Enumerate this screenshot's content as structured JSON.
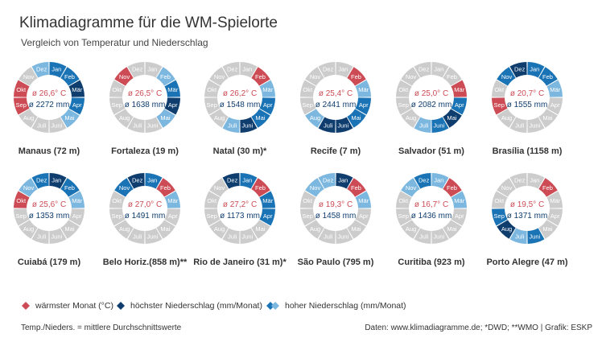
{
  "title": "Klimadiagramme für die WM-Spielorte",
  "subtitle": "Vergleich von Temperatur und Niederschlag",
  "colors": {
    "gray": "#cccccc",
    "red": "#cc4b55",
    "dark": "#0e3d6e",
    "mid": "#1a73b4",
    "light": "#7cb7df"
  },
  "month_labels": [
    "Jan",
    "Feb",
    "Mär",
    "Apr",
    "Mai",
    "Juni",
    "Juli",
    "Aug",
    "Sep",
    "Okt",
    "Nov",
    "Dez"
  ],
  "chart_data": [
    {
      "type": "donut",
      "city": "Manaus (72 m)",
      "temp": "ø 26,6° C",
      "precip": "ø 2272 mm",
      "months": {
        "Jan": "mid",
        "Feb": "mid",
        "Mär": "dark",
        "Apr": "mid",
        "Mai": "light",
        "Juni": "gray",
        "Juli": "gray",
        "Aug": "gray",
        "Sep": "red",
        "Okt": "red",
        "Nov": "gray",
        "Dez": "light"
      }
    },
    {
      "type": "donut",
      "city": "Fortaleza (19 m)",
      "temp": "ø 26,5° C",
      "precip": "ø 1638 mm",
      "months": {
        "Jan": "gray",
        "Feb": "light",
        "Mär": "mid",
        "Apr": "dark",
        "Mai": "light",
        "Juni": "gray",
        "Juli": "gray",
        "Aug": "gray",
        "Sep": "gray",
        "Okt": "gray",
        "Nov": "red",
        "Dez": "gray"
      }
    },
    {
      "type": "donut",
      "city": "Natal (30 m)*",
      "temp": "ø 26,2° C",
      "precip": "ø 1548 mm",
      "months": {
        "Jan": "gray",
        "Feb": "red",
        "Mär": "light",
        "Apr": "mid",
        "Mai": "mid",
        "Juni": "dark",
        "Juli": "light",
        "Aug": "gray",
        "Sep": "gray",
        "Okt": "gray",
        "Nov": "gray",
        "Dez": "gray"
      }
    },
    {
      "type": "donut",
      "city": "Recife (7 m)",
      "temp": "ø 25,4° C",
      "precip": "ø 2441 mm",
      "months": {
        "Jan": "gray",
        "Feb": "red",
        "Mär": "light",
        "Apr": "mid",
        "Mai": "mid",
        "Juni": "dark",
        "Juli": "dark",
        "Aug": "light",
        "Sep": "gray",
        "Okt": "gray",
        "Nov": "gray",
        "Dez": "gray"
      }
    },
    {
      "type": "donut",
      "city": "Salvador (51 m)",
      "temp": "ø 25,0° C",
      "precip": "ø 2082 mm",
      "months": {
        "Jan": "gray",
        "Feb": "gray",
        "Mär": "red",
        "Apr": "mid",
        "Mai": "dark",
        "Juni": "mid",
        "Juli": "light",
        "Aug": "gray",
        "Sep": "gray",
        "Okt": "gray",
        "Nov": "gray",
        "Dez": "gray"
      }
    },
    {
      "type": "donut",
      "city": "Brasília (1158 m)",
      "temp": "ø 20,7° C",
      "precip": "ø 1555 mm",
      "months": {
        "Jan": "mid",
        "Feb": "mid",
        "Mär": "light",
        "Apr": "gray",
        "Mai": "gray",
        "Juni": "gray",
        "Juli": "gray",
        "Aug": "gray",
        "Sep": "red",
        "Okt": "gray",
        "Nov": "mid",
        "Dez": "dark"
      }
    },
    {
      "type": "donut",
      "city": "Cuiabá (179 m)",
      "temp": "ø 25,6° C",
      "precip": "ø 1353 mm",
      "months": {
        "Jan": "dark",
        "Feb": "mid",
        "Mär": "light",
        "Apr": "gray",
        "Mai": "gray",
        "Juni": "gray",
        "Juli": "gray",
        "Aug": "gray",
        "Sep": "gray",
        "Okt": "red",
        "Nov": "light",
        "Dez": "mid"
      }
    },
    {
      "type": "donut",
      "city": "Belo Horiz.(858 m)**",
      "temp": "ø 27,0° C",
      "precip": "ø 1491 mm",
      "months": {
        "Jan": "mid",
        "Feb": "red",
        "Mär": "light",
        "Apr": "gray",
        "Mai": "gray",
        "Juni": "gray",
        "Juli": "gray",
        "Aug": "gray",
        "Sep": "gray",
        "Okt": "gray",
        "Nov": "mid",
        "Dez": "dark"
      }
    },
    {
      "type": "donut",
      "city": "Rio de Janeiro (31 m)*",
      "temp": "ø 27,2° C",
      "precip": "ø 1173 mm",
      "months": {
        "Jan": "mid",
        "Feb": "red",
        "Mär": "mid",
        "Apr": "mid",
        "Mai": "gray",
        "Juni": "gray",
        "Juli": "gray",
        "Aug": "gray",
        "Sep": "gray",
        "Okt": "gray",
        "Nov": "gray",
        "Dez": "dark"
      }
    },
    {
      "type": "donut",
      "city": "São Paulo (795 m)",
      "temp": "ø 19,3° C",
      "precip": "ø 1458 mm",
      "months": {
        "Jan": "dark",
        "Feb": "red",
        "Mär": "light",
        "Apr": "gray",
        "Mai": "gray",
        "Juni": "gray",
        "Juli": "gray",
        "Aug": "gray",
        "Sep": "gray",
        "Okt": "gray",
        "Nov": "light",
        "Dez": "light"
      }
    },
    {
      "type": "donut",
      "city": "Curitiba (923 m)",
      "temp": "ø 16,7° C",
      "precip": "ø 1436 mm",
      "months": {
        "Jan": "light",
        "Feb": "red",
        "Mär": "light",
        "Apr": "gray",
        "Mai": "gray",
        "Juni": "gray",
        "Juli": "gray",
        "Aug": "gray",
        "Sep": "gray",
        "Okt": "gray",
        "Nov": "light",
        "Dez": "mid"
      }
    },
    {
      "type": "donut",
      "city": "Porto Alegre (47 m)",
      "temp": "ø 19,5° C",
      "precip": "ø 1371 mm",
      "months": {
        "Jan": "gray",
        "Feb": "red",
        "Mär": "gray",
        "Apr": "gray",
        "Mai": "gray",
        "Juni": "mid",
        "Juli": "light",
        "Aug": "dark",
        "Sep": "mid",
        "Okt": "gray",
        "Nov": "gray",
        "Dez": "gray"
      }
    }
  ],
  "legend": {
    "warm_label": "wärmster Monat (°C)",
    "dark_label": "höchster Niederschlag (mm/Monat)",
    "light_label": "hoher Niederschlag (mm/Monat)"
  },
  "note": "Temp./Nieders. = mittlere Durchschnittswerte",
  "source": "Daten: www.klimadiagramme.de; *DWD; **WMO | Grafik: ESKP"
}
